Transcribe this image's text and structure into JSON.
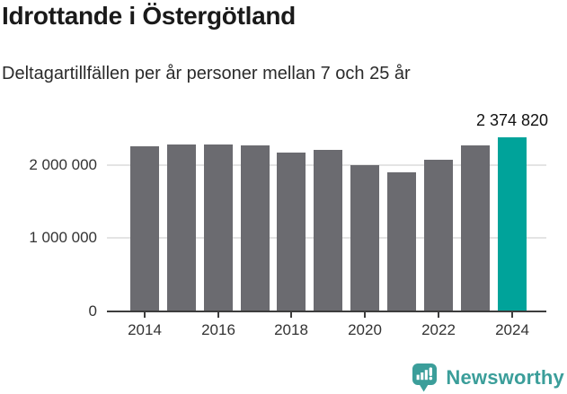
{
  "chart_data": {
    "type": "bar",
    "title": "Idrottande i Östergötland",
    "subtitle": "Deltagartillfällen per år personer mellan 7 och 25 år",
    "categories": [
      "2014",
      "2015",
      "2016",
      "2017",
      "2018",
      "2019",
      "2020",
      "2021",
      "2022",
      "2023",
      "2024"
    ],
    "values": [
      2250000,
      2280000,
      2280000,
      2260000,
      2160000,
      2200000,
      1990000,
      1900000,
      2070000,
      2260000,
      2374820
    ],
    "highlight_index": 10,
    "highlight_label": "2 374 820",
    "x_tick_labels": [
      "2014",
      "2016",
      "2018",
      "2020",
      "2022",
      "2024"
    ],
    "y_ticks": [
      {
        "value": 0,
        "label": "0"
      },
      {
        "value": 1000000,
        "label": "1 000 000"
      },
      {
        "value": 2000000,
        "label": "2 000 000"
      }
    ],
    "ylim": [
      0,
      2450000
    ],
    "grid": "horizontal",
    "legend": "none",
    "bar_color": "#6b6b70",
    "highlight_color": "#00a39a"
  },
  "footer": {
    "brand": "Newsworthy",
    "brand_color": "#3b9e9a",
    "logo_icon": "newsworthy-speech-bubble-bar-chart-icon"
  }
}
